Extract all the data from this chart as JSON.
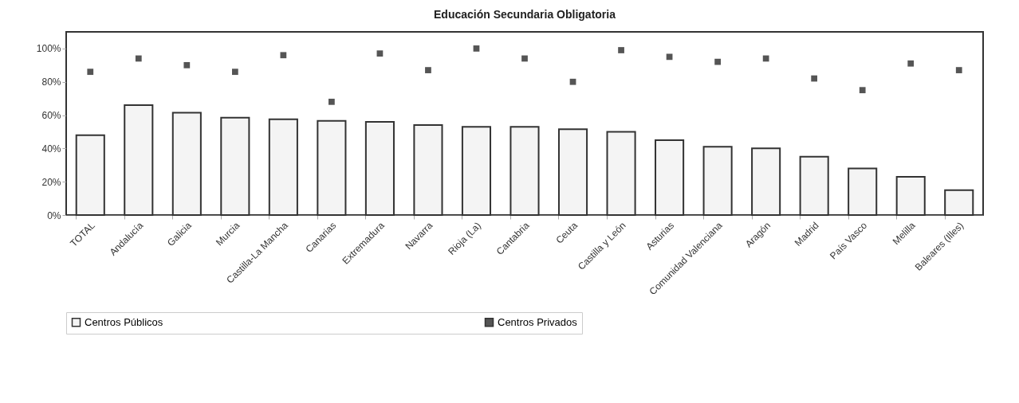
{
  "chart_data": {
    "type": "bar",
    "title": "Educación Secundaria Obligatoria",
    "categories": [
      "TOTAL",
      "Andalucía",
      "Galicia",
      "Murcia",
      "Castilla-La Mancha",
      "Canarias",
      "Extremadura",
      "Navarra",
      "Rioja (La)",
      "Cantabria",
      "Ceuta",
      "Castilla y León",
      "Asturias",
      "Comunidad Valenciana",
      "Aragón",
      "Madrid",
      "País Vasco",
      "Melilla",
      "Baleares (Illes)"
    ],
    "series": [
      {
        "name": "Centros Públicos",
        "color": "#f4f4f4",
        "values": [
          48,
          66,
          61.5,
          58.5,
          57.5,
          56.5,
          56,
          54,
          53,
          53,
          51.5,
          50,
          45,
          41,
          40,
          35,
          28,
          23,
          15
        ]
      },
      {
        "name": "Centros Privados",
        "type": "scatter",
        "color": "#555555",
        "values": [
          86,
          94,
          90,
          86,
          96,
          68,
          97,
          87,
          100,
          94,
          80,
          99,
          95,
          92,
          94,
          82,
          75,
          91,
          87
        ]
      }
    ],
    "ylim": [
      0,
      110
    ],
    "yticks": [
      {
        "value": 0,
        "label": "0%"
      },
      {
        "value": 20,
        "label": "20%"
      },
      {
        "value": 40,
        "label": "40%"
      },
      {
        "value": 60,
        "label": "60%"
      },
      {
        "value": 80,
        "label": "80%"
      },
      {
        "value": 100,
        "label": "100%"
      }
    ],
    "grid": false,
    "legend": "bottom",
    "marker": "square"
  }
}
